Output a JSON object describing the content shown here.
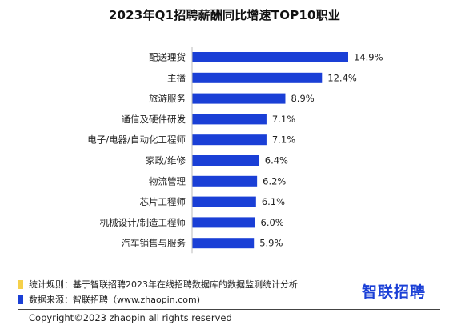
{
  "chart_data": {
    "type": "bar",
    "orientation": "horizontal",
    "title": "2023年Q1招聘薪酬同比增速TOP10职业",
    "categories": [
      "配送理货",
      "主播",
      "旅游服务",
      "通信及硬件研发",
      "电子/电器/自动化工程师",
      "家政/维修",
      "物流管理",
      "芯片工程师",
      "机械设计/制造工程师",
      "汽车销售与服务"
    ],
    "values": [
      14.9,
      12.4,
      8.9,
      7.1,
      7.1,
      6.4,
      6.2,
      6.1,
      6.0,
      5.9
    ],
    "value_labels": [
      "14.9%",
      "12.4%",
      "8.9%",
      "7.1%",
      "7.1%",
      "6.4%",
      "6.2%",
      "6.1%",
      "6.0%",
      "5.9%"
    ],
    "bar_color": "#1a3fd6",
    "xlim": [
      0,
      14.9
    ],
    "grid": false
  },
  "footer": {
    "note1": "统计规则：基于智联招聘2023年在线招聘数据库的数据监测统计分析",
    "note1_color": "#f5d04a",
    "note2": "数据来源：智联招聘（www.zhaopin.com)",
    "note2_color": "#1a3fd6",
    "logo": "智联招聘",
    "copyright": "Copyright©2023 zhaopin all rights reserved"
  }
}
